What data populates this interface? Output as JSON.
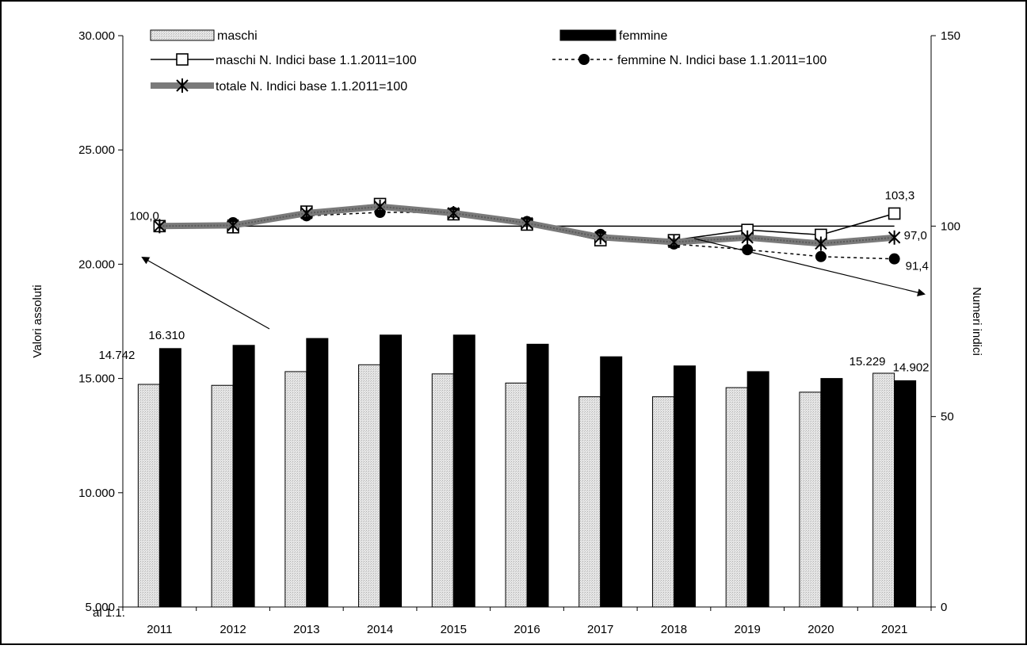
{
  "chart_data": {
    "type": "bar",
    "categories": [
      "2011",
      "2012",
      "2013",
      "2014",
      "2015",
      "2016",
      "2017",
      "2018",
      "2019",
      "2020",
      "2021"
    ],
    "x_prefix": "al 1.1.",
    "y_left": {
      "label": "Valori assoluti",
      "ylim": [
        5000,
        30000
      ],
      "ticks": [
        "5.000",
        "10.000",
        "15.000",
        "20.000",
        "25.000",
        "30.000"
      ],
      "tick_values": [
        5000,
        10000,
        15000,
        20000,
        25000,
        30000
      ]
    },
    "y_right": {
      "label": "Numeri indici",
      "ylim": [
        0,
        150
      ],
      "ticks": [
        "0",
        "50",
        "100",
        "150"
      ],
      "tick_values": [
        0,
        50,
        100,
        150
      ]
    },
    "series": [
      {
        "name": "maschi",
        "kind": "bar",
        "axis": "left",
        "color": "#d9d9d9",
        "values": [
          14742,
          14700,
          15300,
          15600,
          15200,
          14800,
          14200,
          14200,
          14600,
          14400,
          15229
        ]
      },
      {
        "name": "femmine",
        "kind": "bar",
        "axis": "left",
        "color": "#000000",
        "values": [
          16310,
          16450,
          16750,
          16900,
          16900,
          16500,
          15950,
          15550,
          15300,
          15000,
          14902
        ]
      },
      {
        "name": "maschi N. Indici base 1.1.2011=100",
        "kind": "line",
        "axis": "right",
        "marker": "square",
        "values": [
          100.0,
          99.7,
          103.8,
          105.8,
          103.1,
          100.4,
          96.3,
          96.3,
          99.0,
          97.7,
          103.3
        ]
      },
      {
        "name": "femmine N. Indici base 1.1.2011=100",
        "kind": "line",
        "axis": "right",
        "marker": "circle",
        "dashed": true,
        "values": [
          100.0,
          100.9,
          102.7,
          103.6,
          103.6,
          101.2,
          97.8,
          95.3,
          93.8,
          92.0,
          91.4
        ]
      },
      {
        "name": "totale N. Indici base 1.1.2011=100",
        "kind": "line",
        "axis": "right",
        "marker": "star",
        "values": [
          100.0,
          100.2,
          103.4,
          105.1,
          103.4,
          100.8,
          97.1,
          95.8,
          97.0,
          95.4,
          97.0
        ]
      }
    ],
    "reference_line": 100,
    "data_labels": [
      {
        "text": "14.742",
        "series": "maschi",
        "index": 0
      },
      {
        "text": "16.310",
        "series": "femmine",
        "index": 0
      },
      {
        "text": "15.229",
        "series": "maschi",
        "index": 10
      },
      {
        "text": "14.902",
        "series": "femmine",
        "index": 10
      },
      {
        "text": "100,0",
        "series": "totale N. Indici base 1.1.2011=100",
        "index": 0
      },
      {
        "text": "103,3",
        "series": "maschi N. Indici base 1.1.2011=100",
        "index": 10
      },
      {
        "text": "97,0",
        "series": "totale N. Indici base 1.1.2011=100",
        "index": 10
      },
      {
        "text": "91,4",
        "series": "femmine N. Indici base 1.1.2011=100",
        "index": 10
      }
    ],
    "legend_position": "top",
    "grid": false
  }
}
